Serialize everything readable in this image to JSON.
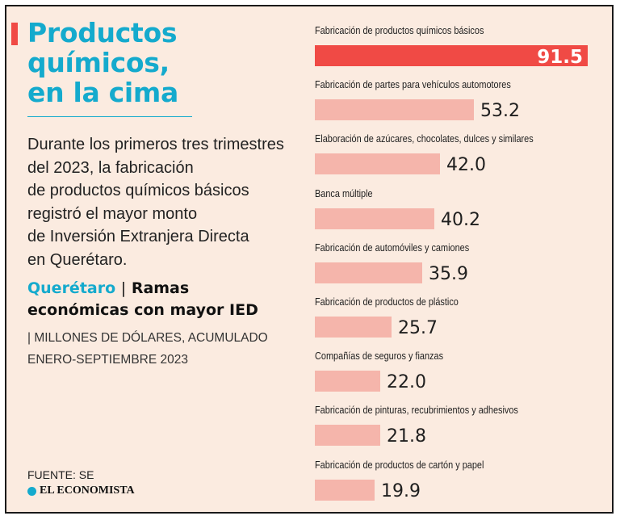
{
  "headline": [
    "Productos",
    "químicos,",
    "en la cima"
  ],
  "description": [
    "Durante los primeros tres trimestres",
    "del 2023, la fabricación",
    "de productos químicos básicos",
    "registró el mayor monto",
    "de Inversión Extranjera Directa",
    "en Querétaro."
  ],
  "subhead": {
    "place": "Querétaro",
    "separator": "|",
    "line1_rest": "Ramas",
    "line2": "económicas con mayor IED"
  },
  "units": [
    "| MILLONES DE DÓLARES, ACUMULADO",
    "ENERO-SEPTIEMBRE 2023"
  ],
  "source": "FUENTE: SE",
  "brand": "EL ECONOMISTA",
  "colors": {
    "accent": "#f04a45",
    "headline": "#14aacd",
    "bar": "#f5b5ab",
    "bar_highlight": "#f04a45",
    "background": "#fbebe0"
  },
  "chart_data": {
    "type": "bar",
    "orientation": "horizontal",
    "categories": [
      "Fabricación de productos químicos básicos",
      "Fabricación de partes para vehículos automotores",
      "Elaboración de azúcares, chocolates, dulces y similares",
      "Banca múltiple",
      "Fabricación de automóviles y camiones",
      "Fabricación de productos de plástico",
      "Compañías de seguros y fianzas",
      "Fabricación de pinturas, recubrimientos y adhesivos",
      "Fabricación de productos de cartón y papel"
    ],
    "values": [
      91.5,
      53.2,
      42.0,
      40.2,
      35.9,
      25.7,
      22.0,
      21.8,
      19.9
    ],
    "value_labels": [
      "91.5",
      "53.2",
      "42.0",
      "40.2",
      "35.9",
      "25.7",
      "22.0",
      "21.8",
      "19.9"
    ],
    "highlight_index": 0,
    "xlim": [
      0,
      91.5
    ],
    "grid": false,
    "legend": "none"
  }
}
